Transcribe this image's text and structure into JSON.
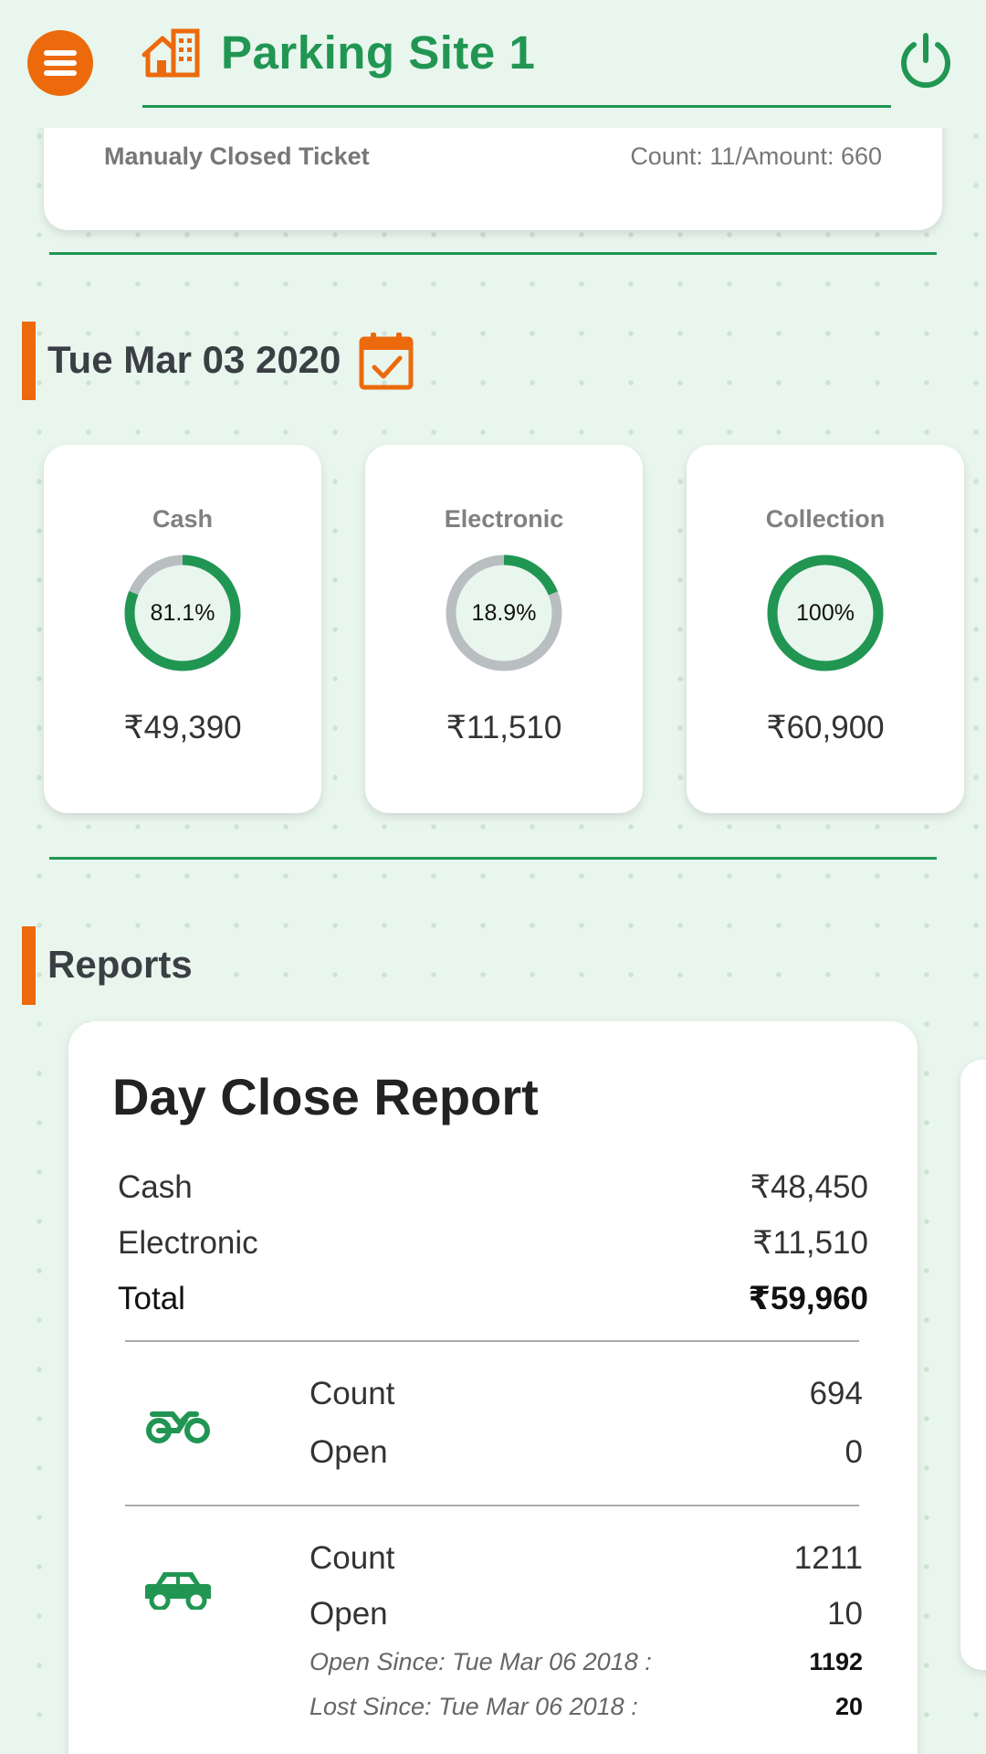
{
  "header": {
    "title": "Parking Site 1",
    "menu_icon": "hamburger-menu-icon",
    "site_icon": "building-home-icon",
    "power_icon": "power-icon"
  },
  "colors": {
    "accent_green": "#219653",
    "accent_orange": "#EC6A0C",
    "ring_track_gray": "#B9BEC1",
    "background": "#E9F6EE"
  },
  "top_card": {
    "label": "Manualy Closed Ticket",
    "value": "Count: 11/Amount: 660"
  },
  "date_section": {
    "date": "Tue Mar 03 2020",
    "calendar_icon": "calendar-check-icon"
  },
  "stats": [
    {
      "label": "Cash",
      "percent_text": "81.1%",
      "percent": 81.1,
      "amount": "₹49,390"
    },
    {
      "label": "Electronic",
      "percent_text": "18.9%",
      "percent": 18.9,
      "amount": "₹11,510"
    },
    {
      "label": "Collection",
      "percent_text": "100%",
      "percent": 100,
      "amount": "₹60,900"
    }
  ],
  "reports_section": {
    "title": "Reports"
  },
  "day_close_report": {
    "title": "Day Close Report",
    "summary": [
      {
        "label": "Cash",
        "value": "₹48,450"
      },
      {
        "label": "Electronic",
        "value": "₹11,510"
      },
      {
        "label": "Total",
        "value": "₹59,960"
      }
    ],
    "bike": {
      "icon": "motorcycle-icon",
      "count_label": "Count",
      "count": "694",
      "open_label": "Open",
      "open": "0"
    },
    "car": {
      "icon": "car-icon",
      "count_label": "Count",
      "count": "1211",
      "open_label": "Open",
      "open": "10",
      "open_since_label": "Open Since: Tue Mar 06 2018 :",
      "open_since": "1192",
      "lost_since_label": "Lost Since: Tue Mar 06 2018 :",
      "lost_since": "20"
    }
  }
}
